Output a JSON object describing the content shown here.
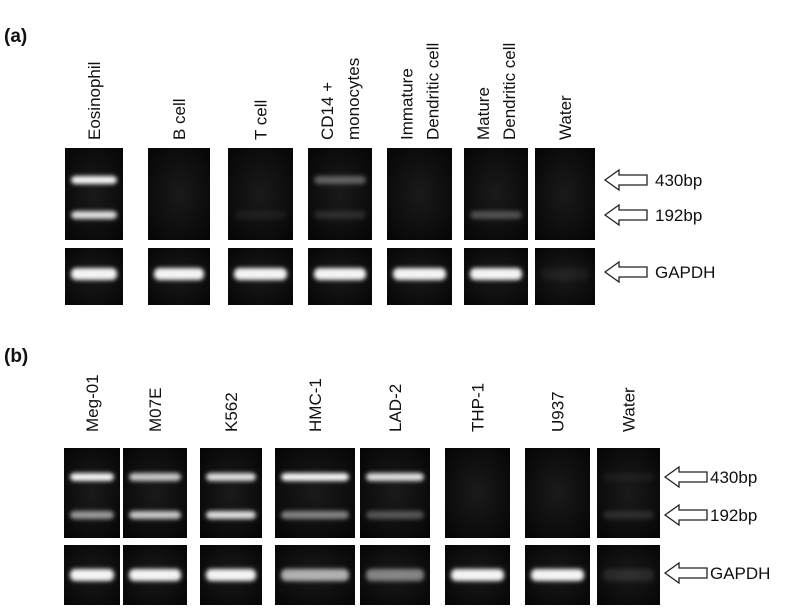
{
  "figure": {
    "panels": [
      {
        "label": "(a)",
        "lanes": [
          {
            "lines": [
              "Eosinophil"
            ]
          },
          {
            "lines": [
              "B cell"
            ]
          },
          {
            "lines": [
              "T cell"
            ]
          },
          {
            "lines": [
              "CD14 +",
              "monocytes"
            ]
          },
          {
            "lines": [
              "Immature",
              "Dendritic cell"
            ]
          },
          {
            "lines": [
              "Mature",
              "Dendritic cell"
            ]
          },
          {
            "lines": [
              "Water"
            ]
          }
        ],
        "markers": [
          "430bp",
          "192bp",
          "GAPDH"
        ]
      },
      {
        "label": "(b)",
        "lanes": [
          {
            "lines": [
              "Meg-01"
            ]
          },
          {
            "lines": [
              "M07E"
            ]
          },
          {
            "lines": [
              "K562"
            ]
          },
          {
            "lines": [
              "HMC-1"
            ]
          },
          {
            "lines": [
              "LAD-2"
            ]
          },
          {
            "lines": [
              "THP-1"
            ]
          },
          {
            "lines": [
              "U937"
            ]
          },
          {
            "lines": [
              "Water"
            ]
          }
        ],
        "markers": [
          "430bp",
          "192bp",
          "GAPDH"
        ]
      }
    ]
  }
}
